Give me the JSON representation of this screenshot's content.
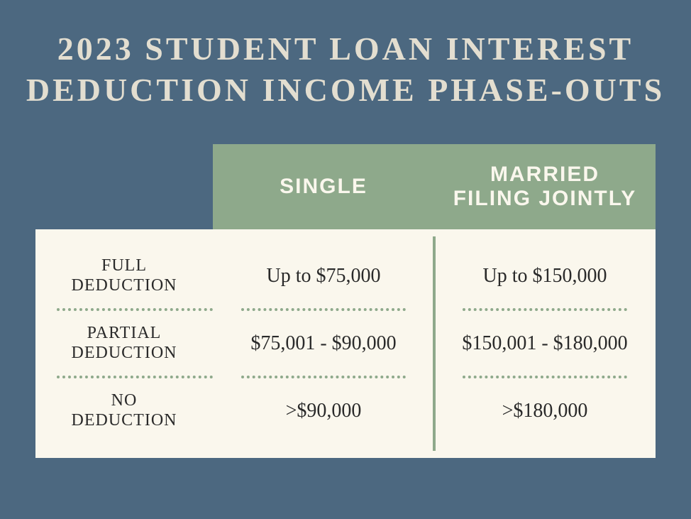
{
  "title": "2023 STUDENT LOAN INTEREST DEDUCTION INCOME PHASE-OUTS",
  "table": {
    "type": "table",
    "background_color": "#4c6880",
    "title_color": "#e3ded0",
    "header_bg": "#8ea98b",
    "header_text_color": "#faf7ed",
    "body_bg": "#faf7ed",
    "body_text_color": "#2a2a2a",
    "divider_color": "#8ea98b",
    "columns": [
      "SINGLE",
      "MARRIED FILING JOINTLY"
    ],
    "rows": [
      {
        "label": "FULL DEDUCTION",
        "single": "Up to $75,000",
        "married": "Up to $150,000"
      },
      {
        "label": "PARTIAL DEDUCTION",
        "single": "$75,001 - $90,000",
        "married": "$150,001 - $180,000"
      },
      {
        "label": "NO DEDUCTION",
        "single": ">$90,000",
        "married": ">$180,000"
      }
    ],
    "title_fontsize": 46,
    "header_fontsize": 30,
    "label_fontsize": 24,
    "value_fontsize": 28
  }
}
